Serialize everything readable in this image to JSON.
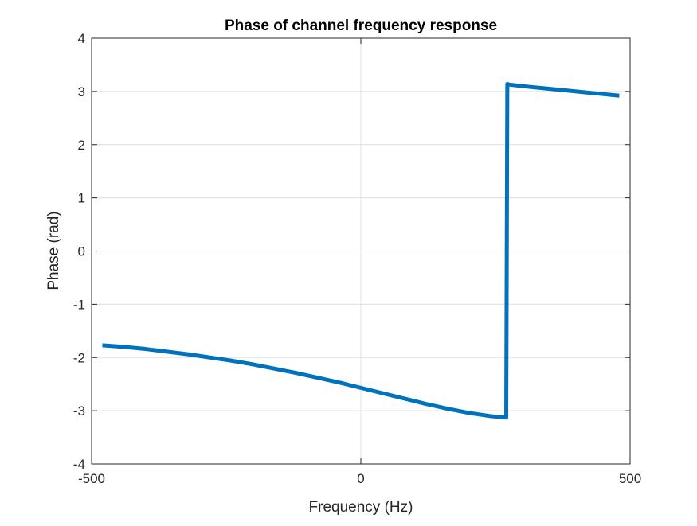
{
  "chart_data": {
    "type": "line",
    "title": "Phase of channel frequency response",
    "xlabel": "Frequency (Hz)",
    "ylabel": "Phase (rad)",
    "xlim": [
      -500,
      500
    ],
    "ylim": [
      -4,
      4
    ],
    "x_ticks": [
      -500,
      0,
      500
    ],
    "x_tick_labels": [
      "-500",
      "0",
      "500"
    ],
    "y_ticks": [
      4,
      3,
      2,
      1,
      0,
      -1,
      -2,
      -3,
      -4
    ],
    "y_tick_labels": [
      "4",
      "3",
      "2",
      "1",
      "0",
      "-1",
      "-2",
      "-3",
      "-4"
    ],
    "grid": true,
    "series": [
      {
        "color": "#0072BD",
        "x": [
          -480,
          -440,
          -400,
          -360,
          -320,
          -280,
          -240,
          -200,
          -160,
          -120,
          -80,
          -40,
          0,
          40,
          80,
          120,
          160,
          200,
          240,
          270,
          272,
          275,
          300,
          340,
          380,
          420,
          460,
          480
        ],
        "y": [
          -1.77,
          -1.8,
          -1.84,
          -1.89,
          -1.94,
          -2.0,
          -2.06,
          -2.13,
          -2.21,
          -2.29,
          -2.38,
          -2.47,
          -2.57,
          -2.67,
          -2.77,
          -2.87,
          -2.96,
          -3.04,
          -3.1,
          -3.13,
          3.14,
          3.13,
          3.1,
          3.06,
          3.02,
          2.98,
          2.94,
          2.92
        ]
      }
    ]
  }
}
